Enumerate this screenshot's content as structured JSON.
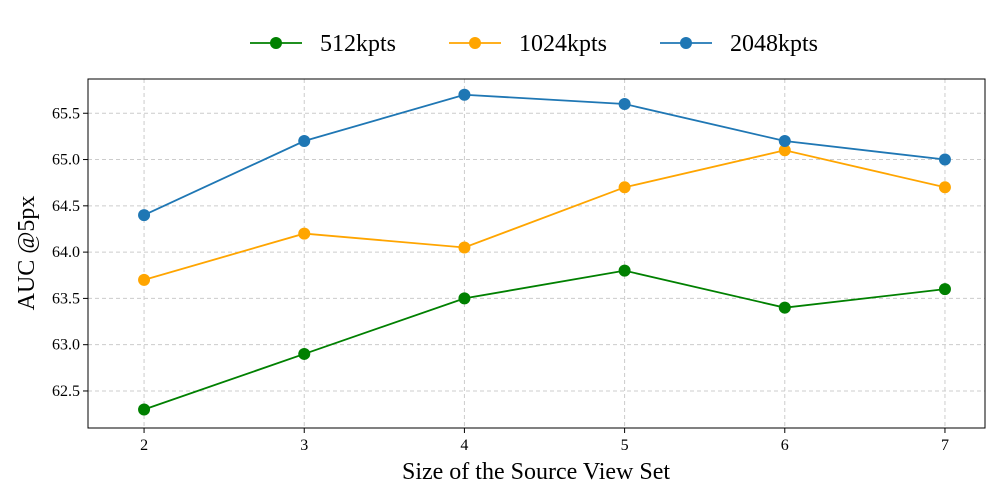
{
  "chart_data": {
    "type": "line",
    "xlabel": "Size of the Source View Set",
    "ylabel": "AUC @5px",
    "x": [
      2,
      3,
      4,
      5,
      6,
      7
    ],
    "xlim": [
      1.65,
      7.25
    ],
    "ylim": [
      62.1,
      65.87
    ],
    "xticks": [
      "2",
      "3",
      "4",
      "5",
      "6",
      "7"
    ],
    "yticks": [
      "62.5",
      "63.0",
      "63.5",
      "64.0",
      "64.5",
      "65.0",
      "65.5"
    ],
    "grid": true,
    "legend_position": "top-center",
    "series": [
      {
        "name": "512kpts",
        "color": "#008000",
        "values": [
          62.3,
          62.9,
          63.5,
          63.8,
          63.4,
          63.6
        ]
      },
      {
        "name": "1024kpts",
        "color": "#FFA500",
        "values": [
          63.7,
          64.2,
          64.05,
          64.7,
          65.1,
          64.7
        ]
      },
      {
        "name": "2048kpts",
        "color": "#1F77B4",
        "values": [
          64.4,
          65.2,
          65.7,
          65.6,
          65.2,
          65.0
        ]
      }
    ]
  }
}
